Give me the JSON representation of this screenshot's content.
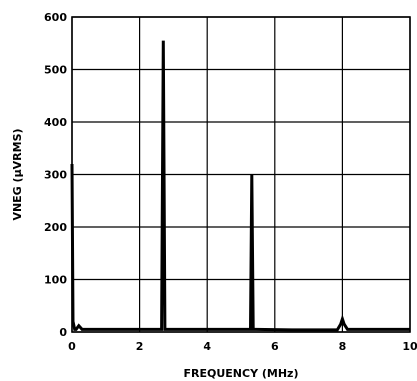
{
  "chart_data": {
    "type": "line",
    "title": "",
    "xlabel": "FREQUENCY (MHz)",
    "ylabel": "VNEG (μVRMS)",
    "xlim": [
      0,
      10
    ],
    "ylim": [
      0,
      600
    ],
    "xticks": [
      "0",
      "2",
      "4",
      "6",
      "8",
      "10"
    ],
    "yticks": [
      "0",
      "100",
      "200",
      "300",
      "400",
      "500",
      "600"
    ],
    "grid": true,
    "series": [
      {
        "x": [
          0,
          0.03,
          0.08,
          0.12,
          0.2,
          0.3,
          1.0,
          2.0,
          2.55,
          2.65,
          2.7,
          2.75,
          2.85,
          3.5,
          4.5,
          5.2,
          5.28,
          5.32,
          5.36,
          5.45,
          6.5,
          7.85,
          7.95,
          8.0,
          8.05,
          8.15,
          9.0,
          10.0
        ],
        "y": [
          320,
          20,
          5,
          5,
          12,
          5,
          5,
          5,
          5,
          5,
          555,
          5,
          5,
          5,
          5,
          5,
          5,
          300,
          5,
          5,
          4,
          4,
          15,
          25,
          15,
          5,
          5,
          5
        ]
      }
    ]
  }
}
